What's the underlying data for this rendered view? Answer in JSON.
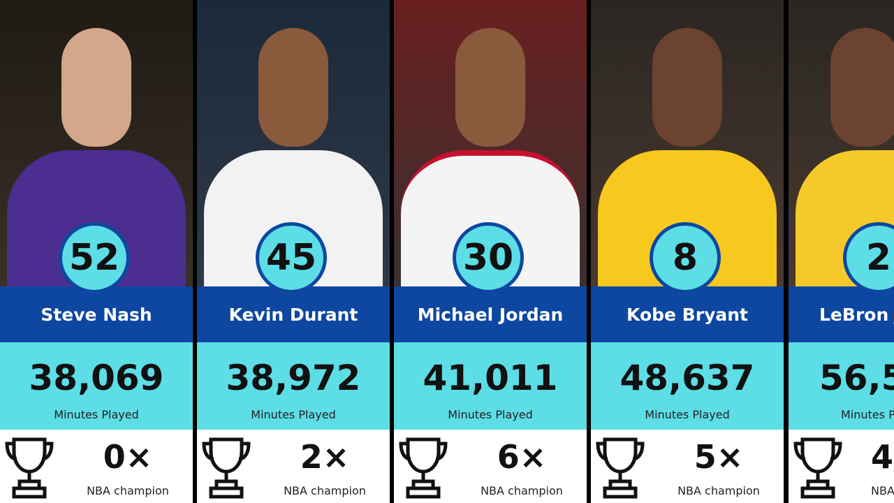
{
  "cards": [
    {
      "rank": "52",
      "name": "Steve Nash",
      "minutes": "38,069",
      "minutes_label": "Minutes Played",
      "titles": "0×",
      "titles_label": "NBA champion"
    },
    {
      "rank": "45",
      "name": "Kevin Durant",
      "minutes": "38,972",
      "minutes_label": "Minutes Played",
      "titles": "2×",
      "titles_label": "NBA champion"
    },
    {
      "rank": "30",
      "name": "Michael Jordan",
      "minutes": "41,011",
      "minutes_label": "Minutes Played",
      "titles": "6×",
      "titles_label": "NBA champion"
    },
    {
      "rank": "8",
      "name": "Kobe Bryant",
      "minutes": "48,637",
      "minutes_label": "Minutes Played",
      "titles": "5×",
      "titles_label": "NBA champion"
    },
    {
      "rank": "2",
      "name": "LeBron J",
      "minutes": "56,5",
      "minutes_label": "Minutes P",
      "titles": "4",
      "titles_label": "NBA"
    }
  ]
}
